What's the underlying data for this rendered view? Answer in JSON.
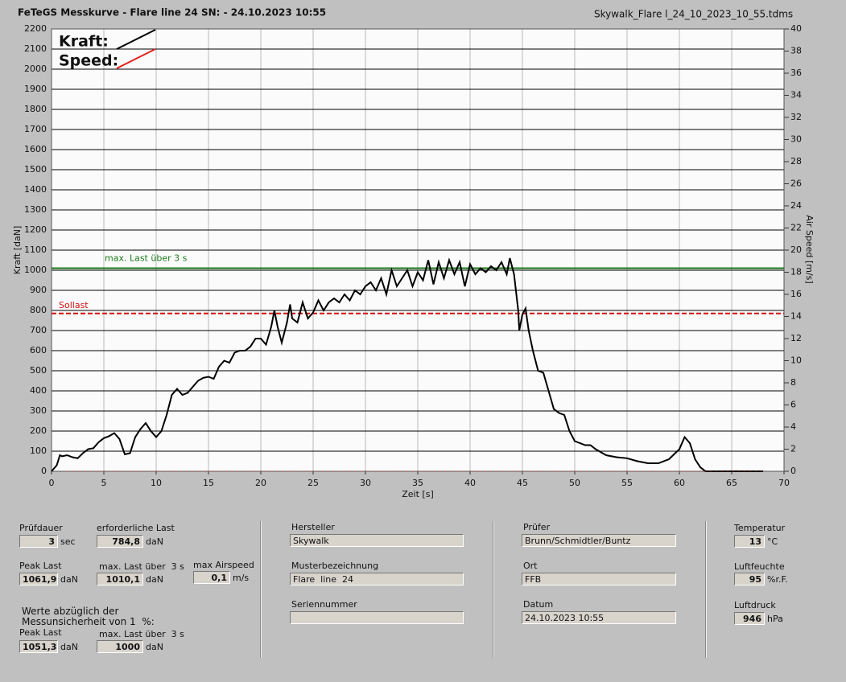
{
  "chart_data": {
    "type": "line",
    "title": "FeTeGS Messkurve - Flare  line  24  SN:  - 24.10.2023 10:55",
    "subtitle": "Skywalk_Flare  l_24_10_2023_10_55.tdms",
    "x_label": "Zeit [s]",
    "y_label": "Kraft [daN]",
    "y2_label": "Air Speed [m/s]",
    "xlim": [
      0,
      70
    ],
    "xticks": [
      0,
      5,
      10,
      15,
      20,
      25,
      30,
      35,
      40,
      45,
      50,
      55,
      60,
      65,
      70
    ],
    "ylim": [
      0,
      2200
    ],
    "yticks": [
      0,
      100,
      200,
      300,
      400,
      500,
      600,
      700,
      800,
      900,
      1000,
      1100,
      1200,
      1300,
      1400,
      1500,
      1600,
      1700,
      1800,
      1900,
      2000,
      2100,
      2200
    ],
    "y2lim": [
      0,
      40
    ],
    "y2ticks": [
      0,
      2,
      4,
      6,
      8,
      10,
      12,
      14,
      16,
      18,
      20,
      22,
      24,
      26,
      28,
      30,
      32,
      34,
      36,
      38,
      40
    ],
    "grid": true,
    "series": [
      {
        "name": "Kraft:",
        "color": "#000000",
        "x": [
          0,
          0.5,
          0.8,
          1,
          1.5,
          2,
          2.5,
          3,
          3.5,
          4,
          4.5,
          5,
          5.5,
          6,
          6.5,
          7,
          7.5,
          8,
          8.5,
          9,
          9.5,
          10,
          10.5,
          11,
          11.5,
          12,
          12.5,
          13,
          13.5,
          14,
          14.5,
          15,
          15.5,
          16,
          16.5,
          17,
          17.5,
          18,
          18.5,
          19,
          19.5,
          20,
          20.5,
          21,
          21.3,
          21.6,
          22,
          22.5,
          22.8,
          23,
          23.5,
          24,
          24.5,
          25,
          25.5,
          26,
          26.5,
          27,
          27.5,
          28,
          28.5,
          29,
          29.5,
          30,
          30.5,
          31,
          31.5,
          32,
          32.5,
          33,
          33.5,
          34,
          34.5,
          35,
          35.5,
          36,
          36.5,
          37,
          37.5,
          38,
          38.5,
          39,
          39.5,
          40,
          40.5,
          41,
          41.5,
          42,
          42.5,
          43,
          43.5,
          43.8,
          44.2,
          44.6,
          44.7,
          45,
          45.3,
          45.6,
          46,
          46.5,
          47,
          47.5,
          48,
          48.5,
          49,
          49.5,
          50,
          51,
          51.5,
          52,
          53,
          54,
          55,
          56,
          57,
          58,
          59,
          60,
          60.5,
          61,
          61.5,
          62,
          62.5,
          68
        ],
        "values": [
          0,
          30,
          80,
          75,
          80,
          70,
          65,
          90,
          110,
          115,
          145,
          165,
          175,
          190,
          160,
          85,
          90,
          170,
          210,
          240,
          200,
          170,
          200,
          280,
          380,
          410,
          380,
          390,
          420,
          450,
          465,
          470,
          460,
          520,
          550,
          540,
          590,
          600,
          600,
          620,
          660,
          660,
          630,
          720,
          800,
          720,
          640,
          740,
          830,
          760,
          740,
          840,
          760,
          790,
          850,
          800,
          840,
          860,
          840,
          880,
          850,
          900,
          880,
          920,
          940,
          900,
          960,
          880,
          1000,
          920,
          960,
          1000,
          920,
          990,
          950,
          1050,
          930,
          1040,
          960,
          1050,
          980,
          1040,
          920,
          1030,
          980,
          1010,
          990,
          1020,
          1000,
          1040,
          980,
          1060,
          980,
          800,
          700,
          780,
          810,
          700,
          600,
          500,
          490,
          400,
          310,
          290,
          280,
          200,
          150,
          130,
          130,
          110,
          80,
          70,
          65,
          50,
          40,
          40,
          60,
          110,
          170,
          140,
          60,
          20,
          0,
          0
        ]
      },
      {
        "name": "Speed:",
        "color": "#e02020",
        "axis": "y2",
        "x": [
          1.5,
          68
        ],
        "values": [
          0,
          0
        ]
      }
    ],
    "reference_lines": [
      {
        "label": "max. Last über  3 s",
        "value": 1010.1,
        "color": "#1a7a1a",
        "dashed": false
      },
      {
        "label": "Sollast",
        "value": 784.8,
        "color": "#d01010",
        "dashed": true
      }
    ]
  },
  "panel": {
    "note": [
      "Werte abzüglich der",
      "Messunsicherheit von 1  %:"
    ],
    "fields": [
      {
        "label": "Prüfdauer",
        "value": "3",
        "unit": "sec"
      },
      {
        "label": "erforderliche Last",
        "value": "784,8",
        "unit": "daN"
      },
      {
        "label": "Peak Last",
        "value": "1061,9",
        "unit": "daN"
      },
      {
        "label": "max. Last über  3 s",
        "value": "1010,1",
        "unit": "daN"
      },
      {
        "label": "max Airspeed",
        "value": "0,1",
        "unit": "m/s"
      },
      {
        "label": "Peak Last",
        "value": "1051,3",
        "unit": "daN"
      },
      {
        "label": "max. Last über  3 s",
        "value": "1000",
        "unit": "daN"
      },
      {
        "label": "Hersteller",
        "value": "Skywalk"
      },
      {
        "label": "Musterbezeichnung",
        "value": "Flare  line  24"
      },
      {
        "label": "Seriennummer"
      },
      {
        "label": "Prüfer",
        "value": "Brunn/Schmidtler/Buntz"
      },
      {
        "label": "Ort",
        "value": "FFB"
      },
      {
        "label": "Datum",
        "value": "24.10.2023 10:55"
      },
      {
        "label": "Temperatur",
        "value": "13",
        "unit": "°C"
      },
      {
        "label": "Luftfeuchte",
        "value": "95",
        "unit": "%r.F."
      },
      {
        "label": "Luftdruck",
        "value": "946",
        "unit": "hPa"
      }
    ]
  }
}
